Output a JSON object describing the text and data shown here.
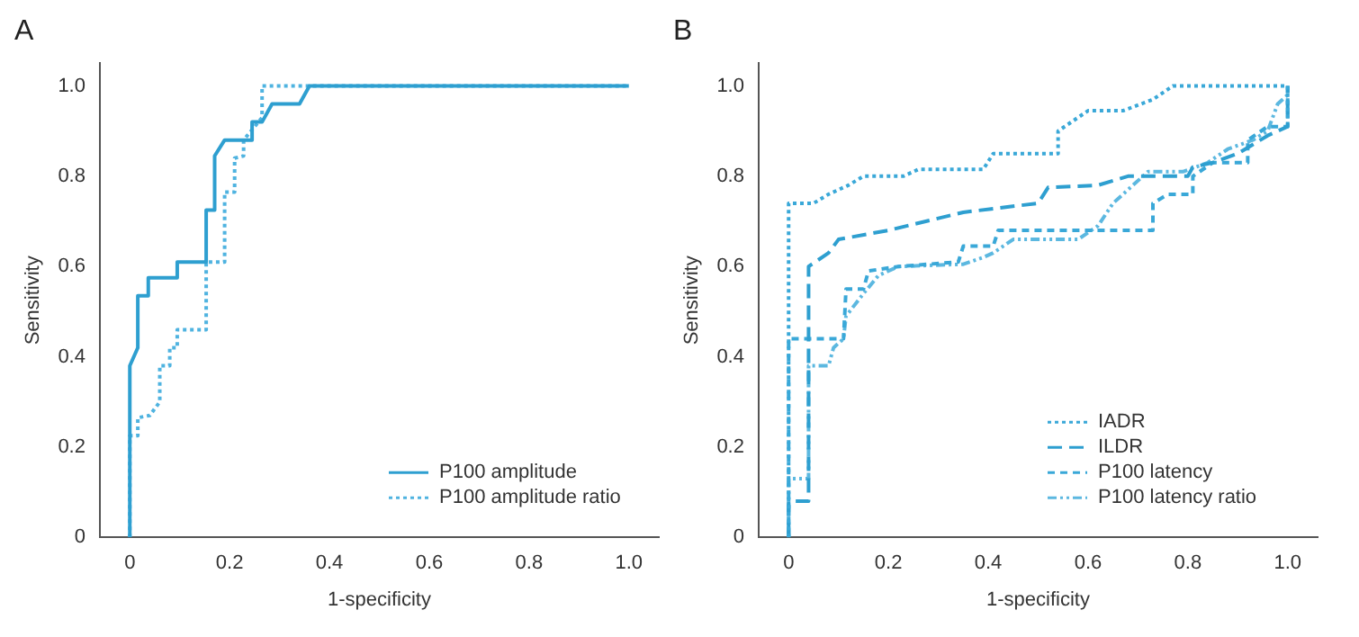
{
  "chart_data": [
    {
      "type": "line",
      "title": "A",
      "xlabel": "1-specificity",
      "ylabel": "Sensitivity",
      "xlim": [
        -0.06,
        1.06
      ],
      "ylim": [
        0,
        1.05
      ],
      "xticks": [
        0,
        {
          "value": 0.2,
          "label": "0.2"
        },
        {
          "value": 0.4,
          "label": "0.4"
        },
        {
          "value": 0.6,
          "label": "0.6"
        },
        {
          "value": 0.8,
          "label": "0.8"
        },
        {
          "value": 1,
          "label": "1.0"
        }
      ],
      "yticks": [
        0,
        {
          "value": 0.2,
          "label": "0.2"
        },
        {
          "value": 0.4,
          "label": "0.4"
        },
        {
          "value": 0.6,
          "label": "0.6"
        },
        {
          "value": 0.8,
          "label": "0.8"
        },
        {
          "value": 1,
          "label": "1.0"
        }
      ],
      "grid": false,
      "legend": "bottom right",
      "marker": "none",
      "series": [
        {
          "name": "P100 amplitude",
          "color": "#2e9fd0",
          "line_style": "solid",
          "x": [
            0,
            0,
            0.016,
            0.016,
            0.037,
            0.037,
            0.095,
            0.095,
            0.153,
            0.153,
            0.17,
            0.17,
            0.19,
            0.245,
            0.245,
            0.265,
            0.285,
            0.34,
            0.36,
            1.0
          ],
          "values": [
            0,
            0.38,
            0.42,
            0.535,
            0.535,
            0.575,
            0.575,
            0.61,
            0.61,
            0.725,
            0.725,
            0.845,
            0.88,
            0.88,
            0.92,
            0.92,
            0.96,
            0.96,
            1.0,
            1.0
          ]
        },
        {
          "name": "P100 amplitude ratio",
          "color": "#4fb3e0",
          "line_style": "dotted",
          "x": [
            0,
            0,
            0.016,
            0.016,
            0.04,
            0.06,
            0.06,
            0.08,
            0.08,
            0.095,
            0.095,
            0.153,
            0.153,
            0.19,
            0.19,
            0.21,
            0.21,
            0.228,
            0.228,
            0.265,
            0.265,
            1.0
          ],
          "values": [
            0,
            0.225,
            0.225,
            0.265,
            0.27,
            0.3,
            0.38,
            0.38,
            0.42,
            0.42,
            0.46,
            0.46,
            0.61,
            0.61,
            0.765,
            0.765,
            0.84,
            0.845,
            0.88,
            0.93,
            1.0,
            1.0
          ]
        }
      ]
    },
    {
      "type": "line",
      "title": "B",
      "xlabel": "1-specificity",
      "ylabel": "Sensitivity",
      "xlim": [
        -0.06,
        1.06
      ],
      "ylim": [
        0,
        1.05
      ],
      "xticks": [
        0,
        {
          "value": 0.2,
          "label": "0.2"
        },
        {
          "value": 0.4,
          "label": "0.4"
        },
        {
          "value": 0.6,
          "label": "0.6"
        },
        {
          "value": 0.8,
          "label": "0.8"
        },
        {
          "value": 1,
          "label": "1.0"
        }
      ],
      "yticks": [
        0,
        {
          "value": 0.2,
          "label": "0.2"
        },
        {
          "value": 0.4,
          "label": "0.4"
        },
        {
          "value": 0.6,
          "label": "0.6"
        },
        {
          "value": 0.8,
          "label": "0.8"
        },
        {
          "value": 1,
          "label": "1.0"
        }
      ],
      "grid": false,
      "legend": "bottom right",
      "marker": "none",
      "series": [
        {
          "name": "IADR",
          "color": "#3aa8d8",
          "line_style": "dotted",
          "x": [
            0,
            0,
            0.05,
            0.08,
            0.12,
            0.15,
            0.23,
            0.26,
            0.39,
            0.41,
            0.54,
            0.54,
            0.6,
            0.67,
            0.73,
            0.77,
            1.0,
            1.0
          ],
          "values": [
            0,
            0.74,
            0.74,
            0.76,
            0.78,
            0.8,
            0.8,
            0.815,
            0.815,
            0.85,
            0.85,
            0.9,
            0.945,
            0.945,
            0.97,
            1.0,
            1.0,
            0.92
          ]
        },
        {
          "name": "ILDR",
          "color": "#2e9fd0",
          "line_style": "dashed",
          "x": [
            0,
            0,
            0.04,
            0.04,
            0.08,
            0.1,
            0.2,
            0.35,
            0.5,
            0.52,
            0.62,
            0.68,
            0.8,
            0.81,
            0.85,
            0.9,
            0.96,
            1.0,
            1.0
          ],
          "values": [
            0,
            0.08,
            0.08,
            0.6,
            0.63,
            0.66,
            0.68,
            0.72,
            0.74,
            0.775,
            0.78,
            0.8,
            0.8,
            0.82,
            0.83,
            0.85,
            0.89,
            0.91,
            1.0
          ]
        },
        {
          "name": "P100 latency",
          "color": "#3aa8d8",
          "line_style": "dashed",
          "x": [
            0,
            0,
            0.11,
            0.115,
            0.15,
            0.16,
            0.22,
            0.34,
            0.35,
            0.41,
            0.42,
            0.73,
            0.73,
            0.76,
            0.81,
            0.81,
            0.85,
            0.92,
            0.92,
            0.96,
            1.0,
            1.0
          ],
          "values": [
            0,
            0.44,
            0.44,
            0.55,
            0.55,
            0.59,
            0.6,
            0.61,
            0.645,
            0.645,
            0.68,
            0.68,
            0.74,
            0.76,
            0.76,
            0.8,
            0.83,
            0.83,
            0.88,
            0.91,
            0.91,
            1.0
          ]
        },
        {
          "name": "P100 latency ratio",
          "color": "#5cb8e0",
          "line_style": "dashed",
          "x": [
            0,
            0,
            0.04,
            0.04,
            0.08,
            0.09,
            0.11,
            0.115,
            0.15,
            0.18,
            0.22,
            0.35,
            0.39,
            0.41,
            0.45,
            0.58,
            0.62,
            0.65,
            0.69,
            0.72,
            0.79,
            0.84,
            0.88,
            0.93,
            0.96,
            0.98,
            1.0
          ],
          "values": [
            0,
            0.13,
            0.13,
            0.38,
            0.38,
            0.42,
            0.44,
            0.49,
            0.54,
            0.58,
            0.6,
            0.605,
            0.62,
            0.63,
            0.66,
            0.66,
            0.69,
            0.74,
            0.78,
            0.81,
            0.81,
            0.83,
            0.86,
            0.88,
            0.9,
            0.96,
            0.98
          ]
        }
      ]
    }
  ]
}
